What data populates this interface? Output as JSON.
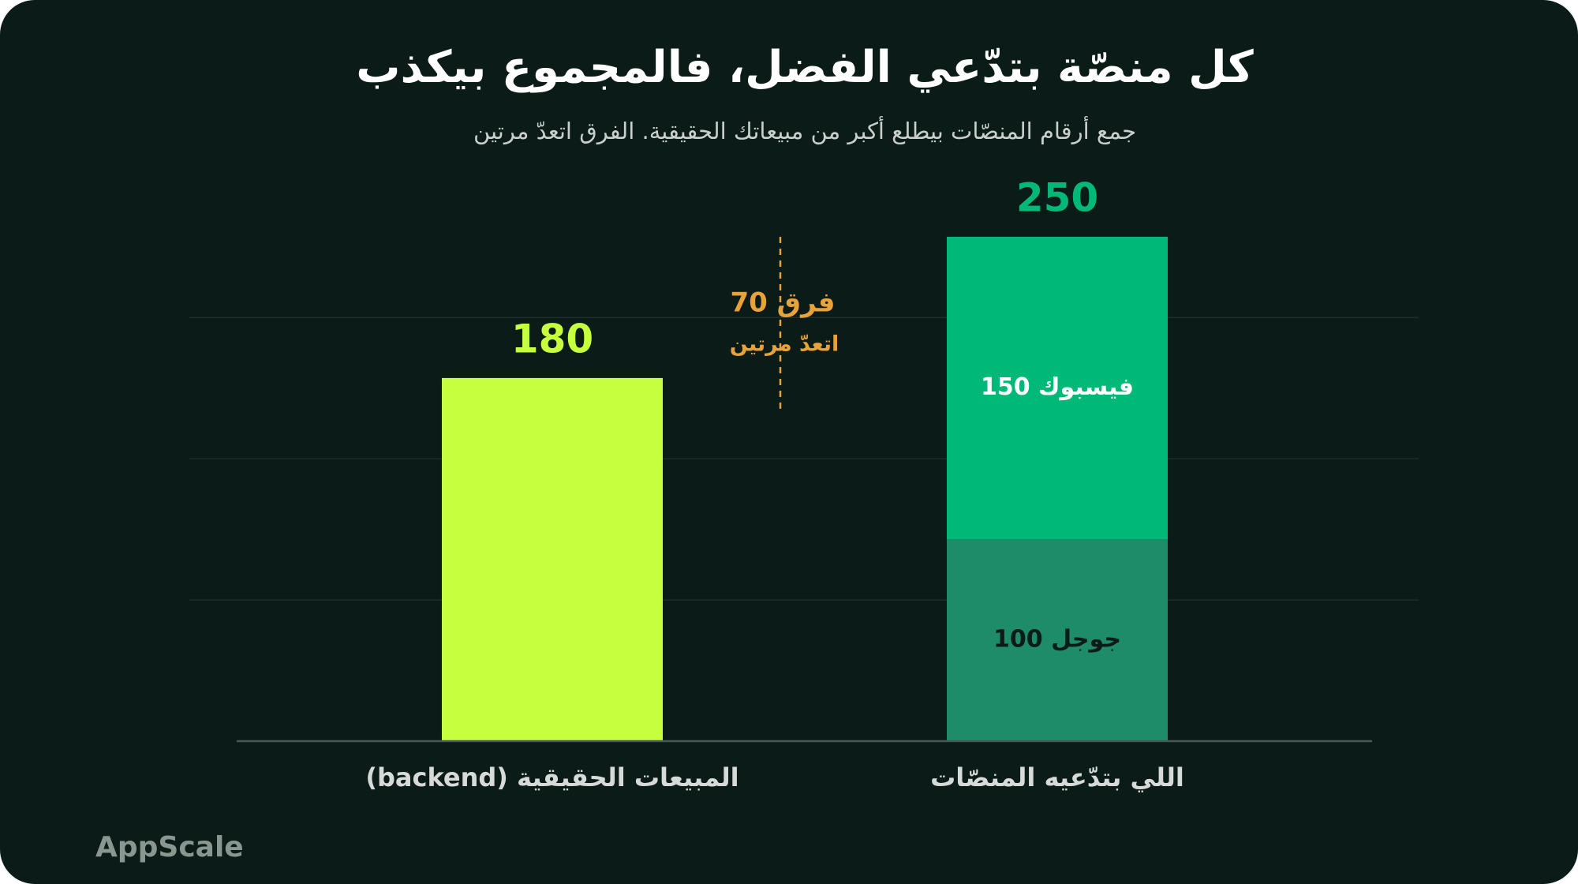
{
  "chart_data": {
    "type": "stacked_bar",
    "title": "كل منصّة بتدّعي الفضل، فالمجموع بيكذب",
    "subtitle": "جمع أرقام المنصّات بيطلع أكبر من مبيعاتك الحقيقية. الفرق اتعدّ مرتين",
    "categories": [
      "المبيعات الحقيقية (backend)",
      "اللي بتدّعيه المنصّات"
    ],
    "series": [
      {
        "color": "#c6ff3d",
        "values": [
          180,
          null
        ]
      },
      {
        "name": "جوجل",
        "color": "#1e8c68",
        "values": [
          null,
          100
        ],
        "value_labels": [
          null,
          "جوجل 100"
        ],
        "label_color": "#0b1b17"
      },
      {
        "name": "فيسبوك",
        "color": "#00b877",
        "values": [
          null,
          150
        ],
        "value_labels": [
          null,
          "فيسبوك 150"
        ],
        "label_color": "#ffffff"
      }
    ],
    "totals": [
      180,
      250
    ],
    "total_colors": [
      "#c6ff3d",
      "#00b877"
    ],
    "annotation": {
      "text": "فرق 70",
      "subtext": "اتعدّ مرتين",
      "color": "#e8a23a"
    },
    "ylim": [
      0,
      250
    ],
    "yticks": [
      0,
      70,
      140,
      210
    ],
    "grid": true,
    "brand": "AppScale"
  }
}
